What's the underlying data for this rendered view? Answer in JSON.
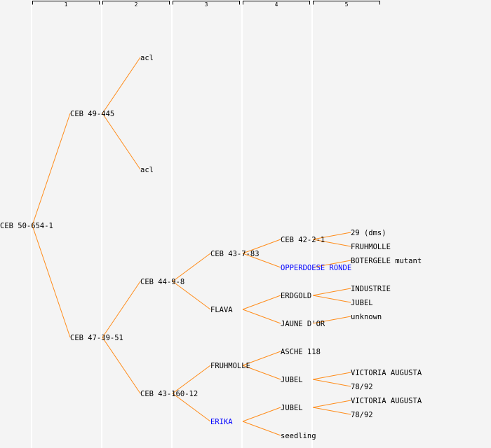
{
  "colors": {
    "background": "#f4f4f4",
    "edge": "#ff8c1a",
    "text": "#000000",
    "highlight": "#0000ff",
    "separator": "#ffffff"
  },
  "generations": [
    "1",
    "2",
    "3",
    "4",
    "5"
  ],
  "tree": {
    "label": "CEB 50-654-1",
    "children": [
      {
        "label": "CEB 49-445",
        "children": [
          {
            "label": "acl"
          },
          {
            "label": "acl"
          }
        ]
      },
      {
        "label": "CEB 47-39-51",
        "children": [
          {
            "label": "CEB 44-9-8",
            "children": [
              {
                "label": "CEB 43-7-83",
                "children": [
                  {
                    "label": "CEB 42-2-1",
                    "children": [
                      {
                        "label": "29 (dms)"
                      },
                      {
                        "label": "FRUHMOLLE"
                      }
                    ]
                  },
                  {
                    "label": "OPPERDOESE RONDE",
                    "highlight": true,
                    "children": [
                      {
                        "label": "BOTERGELE mutant"
                      }
                    ]
                  }
                ]
              },
              {
                "label": "FLAVA",
                "children": [
                  {
                    "label": "ERDGOLD",
                    "children": [
                      {
                        "label": "INDUSTRIE"
                      },
                      {
                        "label": "JUBEL"
                      }
                    ]
                  },
                  {
                    "label": "JAUNE D'OR",
                    "children": [
                      {
                        "label": "unknown"
                      }
                    ]
                  }
                ]
              }
            ]
          },
          {
            "label": "CEB 43-160-12",
            "children": [
              {
                "label": "FRUHMOLLE",
                "children": [
                  {
                    "label": "ASCHE 118"
                  },
                  {
                    "label": "JUBEL",
                    "children": [
                      {
                        "label": "VICTORIA AUGUSTA"
                      },
                      {
                        "label": "78/92"
                      }
                    ]
                  }
                ]
              },
              {
                "label": "ERIKA",
                "highlight": true,
                "children": [
                  {
                    "label": "JUBEL",
                    "children": [
                      {
                        "label": "VICTORIA AUGUSTA"
                      },
                      {
                        "label": "78/92"
                      }
                    ]
                  },
                  {
                    "label": "seedling"
                  }
                ]
              }
            ]
          }
        ]
      }
    ]
  }
}
